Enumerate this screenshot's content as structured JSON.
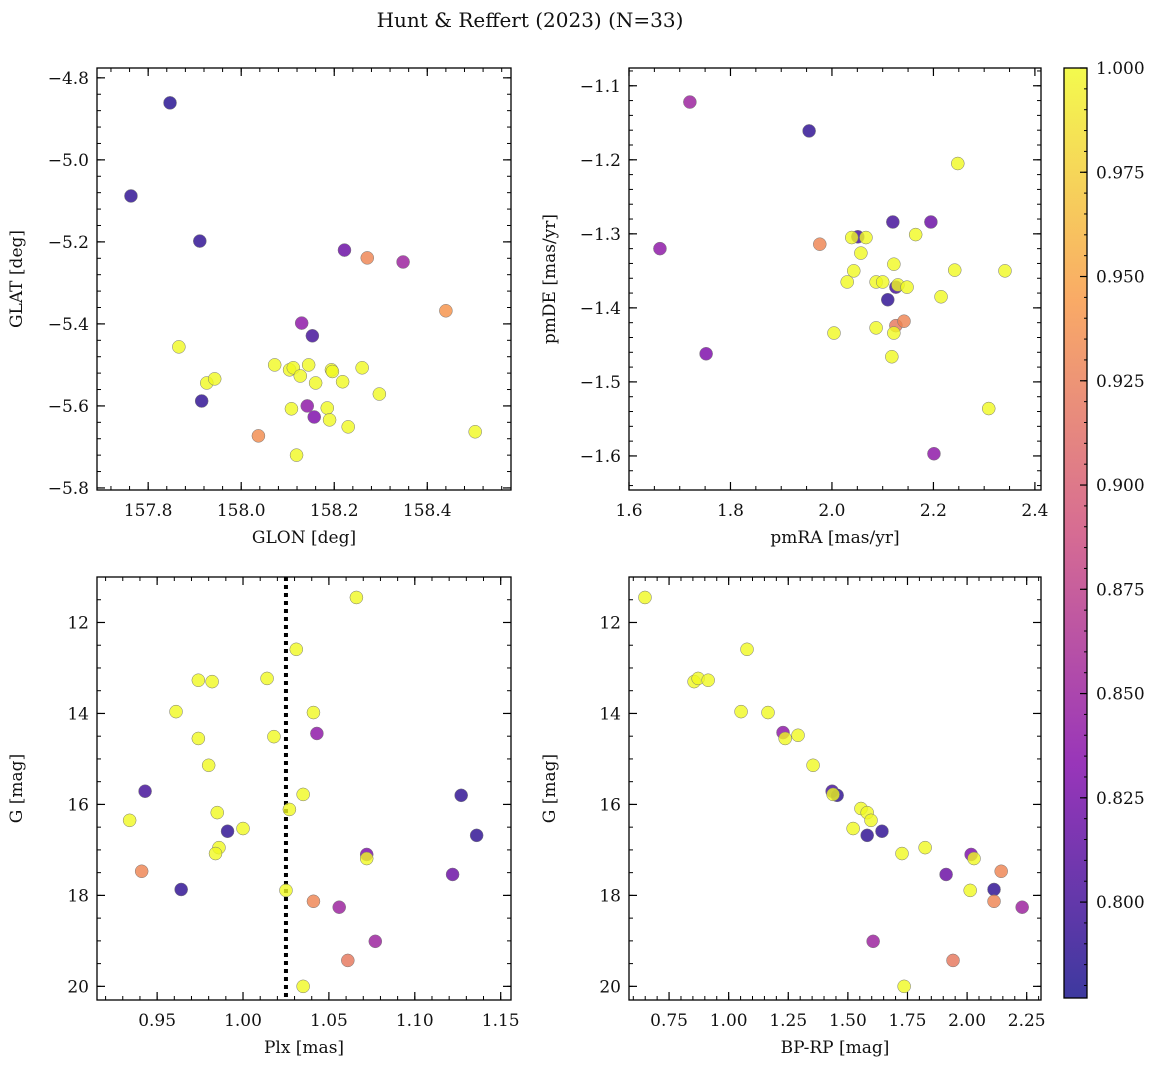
{
  "chart_data": {
    "type": "scatter",
    "title": "Hunt & Reffert (2023) (N=33)",
    "colormap": [
      "#0d0887",
      "#7e03a8",
      "#cc4778",
      "#f89540",
      "#f0f921"
    ],
    "marker_edge_color": "#777777",
    "colorbar": {
      "range": [
        0.777,
        1.0
      ],
      "ticks": [
        0.8,
        0.825,
        0.85,
        0.875,
        0.9,
        0.925,
        0.95,
        0.975,
        1.0
      ],
      "tick_labels": [
        "0.800",
        "0.825",
        "0.850",
        "0.875",
        "0.900",
        "0.925",
        "0.950",
        "0.975",
        "1.000"
      ]
    },
    "panels": [
      {
        "xlabel": "GLON [deg]",
        "ylabel": "GLAT [deg]",
        "xlim": [
          157.69,
          158.58
        ],
        "ylim": [
          -5.805,
          -4.776
        ],
        "y_inverted": false,
        "xticks": [
          157.8,
          158.0,
          158.2,
          158.4
        ],
        "xtick_labels": [
          "157.8",
          "158.0",
          "158.2",
          "158.4"
        ],
        "xminor": 0.04,
        "yticks": [
          -5.8,
          -5.6,
          -5.4,
          -5.2,
          -5.0,
          -4.8
        ],
        "ytick_labels": [
          "−5.8",
          "−5.6",
          "−5.4",
          "−5.2",
          "−5.0",
          "−4.8"
        ],
        "yminor": 0.04,
        "points": [
          [
            157.847,
            -4.861,
            0.785
          ],
          [
            157.763,
            -5.088,
            0.79
          ],
          [
            157.911,
            -5.198,
            0.79
          ],
          [
            157.915,
            -5.588,
            0.79
          ],
          [
            157.866,
            -5.456,
            1.0
          ],
          [
            157.926,
            -5.544,
            1.0
          ],
          [
            157.943,
            -5.534,
            1.0
          ],
          [
            158.037,
            -5.673,
            0.935
          ],
          [
            158.072,
            -5.5,
            1.0
          ],
          [
            158.104,
            -5.512,
            1.0
          ],
          [
            158.112,
            -5.507,
            1.0
          ],
          [
            158.108,
            -5.607,
            1.0
          ],
          [
            158.119,
            -5.72,
            1.0
          ],
          [
            158.13,
            -5.398,
            0.84
          ],
          [
            158.127,
            -5.527,
            1.0
          ],
          [
            158.142,
            -5.6,
            0.84
          ],
          [
            158.145,
            -5.5,
            1.0
          ],
          [
            158.153,
            -5.429,
            0.8
          ],
          [
            158.16,
            -5.544,
            1.0
          ],
          [
            158.157,
            -5.627,
            0.83
          ],
          [
            158.185,
            -5.605,
            1.0
          ],
          [
            158.19,
            -5.634,
            1.0
          ],
          [
            158.194,
            -5.512,
            1.0
          ],
          [
            158.196,
            -5.516,
            1.0
          ],
          [
            158.218,
            -5.541,
            1.0
          ],
          [
            158.222,
            -5.22,
            0.82
          ],
          [
            158.23,
            -5.651,
            1.0
          ],
          [
            158.26,
            -5.507,
            1.0
          ],
          [
            158.271,
            -5.239,
            0.93
          ],
          [
            158.297,
            -5.571,
            1.0
          ],
          [
            158.348,
            -5.249,
            0.85
          ],
          [
            158.44,
            -5.368,
            0.94
          ],
          [
            158.503,
            -5.663,
            1.0
          ]
        ]
      },
      {
        "xlabel": "pmRA [mas/yr]",
        "ylabel": "pmDE [mas/yr]",
        "xlim": [
          1.6,
          2.412
        ],
        "ylim": [
          -1.646,
          -1.076
        ],
        "y_inverted": false,
        "xticks": [
          1.6,
          1.8,
          2.0,
          2.2,
          2.4
        ],
        "xtick_labels": [
          "1.6",
          "1.8",
          "2.0",
          "2.2",
          "2.4"
        ],
        "xminor": 0.05,
        "yticks": [
          -1.6,
          -1.5,
          -1.4,
          -1.3,
          -1.2,
          -1.1
        ],
        "ytick_labels": [
          "−1.6",
          "−1.5",
          "−1.4",
          "−1.3",
          "−1.2",
          "−1.1"
        ],
        "yminor": 0.02,
        "points": [
          [
            1.72,
            -1.122,
            0.85
          ],
          [
            1.955,
            -1.161,
            0.79
          ],
          [
            2.248,
            -1.205,
            1.0
          ],
          [
            1.661,
            -1.32,
            0.84
          ],
          [
            1.752,
            -1.462,
            0.83
          ],
          [
            1.976,
            -1.314,
            0.93
          ],
          [
            2.051,
            -1.304,
            0.8
          ],
          [
            2.039,
            -1.305,
            1.0
          ],
          [
            2.067,
            -1.305,
            1.0
          ],
          [
            2.057,
            -1.326,
            1.0
          ],
          [
            2.043,
            -1.35,
            1.0
          ],
          [
            2.03,
            -1.365,
            1.0
          ],
          [
            2.087,
            -1.365,
            1.0
          ],
          [
            2.1,
            -1.365,
            1.0
          ],
          [
            2.12,
            -1.284,
            0.8
          ],
          [
            2.195,
            -1.284,
            0.82
          ],
          [
            2.122,
            -1.341,
            1.0
          ],
          [
            2.165,
            -1.301,
            1.0
          ],
          [
            2.126,
            -1.372,
            0.8
          ],
          [
            2.13,
            -1.369,
            1.0
          ],
          [
            2.148,
            -1.372,
            1.0
          ],
          [
            2.11,
            -1.389,
            0.79
          ],
          [
            2.215,
            -1.385,
            1.0
          ],
          [
            2.242,
            -1.349,
            1.0
          ],
          [
            2.341,
            -1.35,
            1.0
          ],
          [
            2.126,
            -1.424,
            0.92
          ],
          [
            2.142,
            -1.418,
            0.93
          ],
          [
            2.122,
            -1.434,
            1.0
          ],
          [
            2.087,
            -1.427,
            1.0
          ],
          [
            2.004,
            -1.434,
            1.0
          ],
          [
            2.118,
            -1.466,
            1.0
          ],
          [
            2.309,
            -1.536,
            1.0
          ],
          [
            2.201,
            -1.597,
            0.84
          ]
        ]
      },
      {
        "xlabel": "Plx [mas]",
        "ylabel": "G [mag]",
        "xlim": [
          0.915,
          1.156
        ],
        "ylim": [
          20.3,
          11.0
        ],
        "y_inverted": true,
        "vline": 1.025,
        "xticks": [
          0.95,
          1.0,
          1.05,
          1.1,
          1.15
        ],
        "xtick_labels": [
          "0.95",
          "1.00",
          "1.05",
          "1.10",
          "1.15"
        ],
        "xminor": 0.01,
        "yticks": [
          12,
          14,
          16,
          18,
          20
        ],
        "ytick_labels": [
          "12",
          "14",
          "16",
          "18",
          "20"
        ],
        "yminor": 0.5,
        "points": [
          [
            1.066,
            11.45,
            1.0
          ],
          [
            1.031,
            12.59,
            1.0
          ],
          [
            1.014,
            13.23,
            1.0
          ],
          [
            0.974,
            13.27,
            1.0
          ],
          [
            0.982,
            13.3,
            1.0
          ],
          [
            0.961,
            13.96,
            1.0
          ],
          [
            1.041,
            13.98,
            1.0
          ],
          [
            1.018,
            14.51,
            1.0
          ],
          [
            1.043,
            14.44,
            0.84
          ],
          [
            0.974,
            14.55,
            1.0
          ],
          [
            0.98,
            15.14,
            1.0
          ],
          [
            0.943,
            15.71,
            0.8
          ],
          [
            1.035,
            15.78,
            1.0
          ],
          [
            1.127,
            15.8,
            0.79
          ],
          [
            0.985,
            16.18,
            1.0
          ],
          [
            1.027,
            16.11,
            1.0
          ],
          [
            0.934,
            16.35,
            1.0
          ],
          [
            1.0,
            16.53,
            1.0
          ],
          [
            0.991,
            16.59,
            0.79
          ],
          [
            0.986,
            16.95,
            1.0
          ],
          [
            0.984,
            17.08,
            1.0
          ],
          [
            1.072,
            17.1,
            0.83
          ],
          [
            1.072,
            17.19,
            1.0
          ],
          [
            1.136,
            16.68,
            0.79
          ],
          [
            0.941,
            17.47,
            0.93
          ],
          [
            1.122,
            17.54,
            0.82
          ],
          [
            0.964,
            17.87,
            0.79
          ],
          [
            1.025,
            17.89,
            1.0
          ],
          [
            1.041,
            18.13,
            0.93
          ],
          [
            1.056,
            18.26,
            0.85
          ],
          [
            1.077,
            19.01,
            0.85
          ],
          [
            1.061,
            19.43,
            0.92
          ],
          [
            1.035,
            20.0,
            1.0
          ]
        ]
      },
      {
        "xlabel": "BP-RP [mag]",
        "ylabel": "G [mag]",
        "xlim": [
          0.582,
          2.31
        ],
        "ylim": [
          20.3,
          11.0
        ],
        "y_inverted": true,
        "xticks": [
          0.75,
          1.0,
          1.25,
          1.5,
          1.75,
          2.0,
          2.25
        ],
        "xtick_labels": [
          "0.75",
          "1.00",
          "1.25",
          "1.50",
          "1.75",
          "2.00",
          "2.25"
        ],
        "xminor": 0.05,
        "yticks": [
          12,
          14,
          16,
          18,
          20
        ],
        "ytick_labels": [
          "12",
          "14",
          "16",
          "18",
          "20"
        ],
        "yminor": 0.5,
        "points": [
          [
            0.649,
            11.45,
            1.0
          ],
          [
            1.077,
            12.59,
            1.0
          ],
          [
            0.855,
            13.3,
            1.0
          ],
          [
            0.872,
            13.23,
            1.0
          ],
          [
            0.914,
            13.27,
            1.0
          ],
          [
            1.052,
            13.96,
            1.0
          ],
          [
            1.165,
            13.98,
            1.0
          ],
          [
            1.228,
            14.42,
            0.84
          ],
          [
            1.237,
            14.55,
            1.0
          ],
          [
            1.291,
            14.48,
            1.0
          ],
          [
            1.354,
            15.14,
            1.0
          ],
          [
            1.434,
            15.71,
            0.8
          ],
          [
            1.455,
            15.8,
            0.79
          ],
          [
            1.438,
            15.78,
            1.0
          ],
          [
            1.555,
            16.09,
            1.0
          ],
          [
            1.581,
            16.18,
            1.0
          ],
          [
            1.597,
            16.35,
            1.0
          ],
          [
            1.522,
            16.53,
            1.0
          ],
          [
            1.581,
            16.68,
            0.79
          ],
          [
            1.643,
            16.59,
            0.79
          ],
          [
            1.727,
            17.08,
            1.0
          ],
          [
            1.824,
            16.95,
            1.0
          ],
          [
            2.017,
            17.1,
            0.83
          ],
          [
            2.029,
            17.19,
            1.0
          ],
          [
            2.143,
            17.47,
            0.93
          ],
          [
            1.912,
            17.54,
            0.82
          ],
          [
            2.113,
            17.87,
            0.79
          ],
          [
            2.013,
            17.89,
            1.0
          ],
          [
            2.113,
            18.13,
            0.93
          ],
          [
            2.231,
            18.26,
            0.85
          ],
          [
            1.606,
            19.01,
            0.85
          ],
          [
            1.941,
            19.43,
            0.92
          ],
          [
            1.736,
            20.0,
            1.0
          ]
        ]
      }
    ]
  }
}
